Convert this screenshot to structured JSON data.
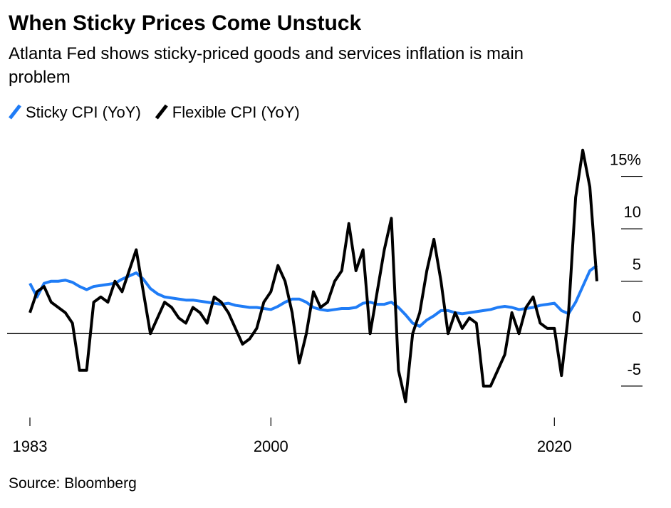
{
  "chart_data": {
    "type": "line",
    "title": "When Sticky Prices Come Unstuck",
    "subtitle": [
      "Atlanta Fed shows sticky-priced goods and services inflation is main",
      "problem"
    ],
    "source": "Source: Bloomberg",
    "x": [
      1983,
      1983.5,
      1984,
      1984.5,
      1985,
      1985.5,
      1986,
      1986.5,
      1987,
      1987.5,
      1988,
      1988.5,
      1989,
      1989.5,
      1990,
      1990.5,
      1991,
      1991.5,
      1992,
      1992.5,
      1993,
      1993.5,
      1994,
      1994.5,
      1995,
      1995.5,
      1996,
      1996.5,
      1997,
      1997.5,
      1998,
      1998.5,
      1999,
      1999.5,
      2000,
      2000.5,
      2001,
      2001.5,
      2002,
      2002.5,
      2003,
      2003.5,
      2004,
      2004.5,
      2005,
      2005.5,
      2006,
      2006.5,
      2007,
      2007.5,
      2008,
      2008.5,
      2009,
      2009.5,
      2010,
      2010.5,
      2011,
      2011.5,
      2012,
      2012.5,
      2013,
      2013.5,
      2014,
      2014.5,
      2015,
      2015.5,
      2016,
      2016.5,
      2017,
      2017.5,
      2018,
      2018.5,
      2019,
      2019.5,
      2020,
      2020.5,
      2021,
      2021.5,
      2022,
      2022.5,
      2023
    ],
    "series": [
      {
        "name": "Sticky CPI (YoY)",
        "color": "#1f7cf6",
        "values": [
          4.8,
          3.5,
          4.8,
          5,
          5,
          5.1,
          4.9,
          4.5,
          4.2,
          4.5,
          4.6,
          4.7,
          4.8,
          5.2,
          5.5,
          5.8,
          5.2,
          4.3,
          3.8,
          3.5,
          3.4,
          3.3,
          3.2,
          3.2,
          3.1,
          3.0,
          2.9,
          2.8,
          2.9,
          2.7,
          2.6,
          2.5,
          2.5,
          2.4,
          2.3,
          2.6,
          3.0,
          3.3,
          3.3,
          3.0,
          2.5,
          2.3,
          2.2,
          2.3,
          2.4,
          2.4,
          2.5,
          2.9,
          3.0,
          2.8,
          2.8,
          3.0,
          2.5,
          1.8,
          1.0,
          0.7,
          1.3,
          1.7,
          2.2,
          2.2,
          2.0,
          1.9,
          2.0,
          2.1,
          2.2,
          2.3,
          2.5,
          2.6,
          2.5,
          2.3,
          2.4,
          2.5,
          2.7,
          2.8,
          2.9,
          2.2,
          1.9,
          3.0,
          4.5,
          6.0,
          6.5
        ]
      },
      {
        "name": "Flexible CPI (YoY)",
        "color": "#000000",
        "values": [
          2,
          4,
          4.5,
          3,
          2.5,
          2,
          1,
          -3.5,
          -3.5,
          3,
          3.5,
          3,
          5,
          4,
          6,
          8,
          4,
          0,
          1.5,
          3,
          2.5,
          1.5,
          1,
          2.5,
          2,
          1,
          3.5,
          3,
          2,
          0.5,
          -1,
          -0.5,
          0.5,
          3,
          4,
          6.5,
          5,
          2,
          -2.8,
          0,
          4,
          2.5,
          3,
          5,
          6,
          10.5,
          6,
          8,
          0,
          4,
          8,
          11,
          -3.5,
          -6.5,
          0,
          2,
          6,
          9,
          5,
          0,
          2,
          0.5,
          1.5,
          1,
          -5,
          -5,
          -3.5,
          -2,
          2,
          0,
          2.5,
          3.5,
          1,
          0.5,
          0.5,
          -4,
          2,
          13,
          17.5,
          14,
          5
        ]
      }
    ],
    "xlim": [
      1983,
      2023
    ],
    "xticks": [
      1983,
      2000,
      2020
    ],
    "ylim": [
      -8,
      20
    ],
    "yticks": [
      {
        "value": 15,
        "label": "15%"
      },
      10,
      5,
      0,
      -5
    ]
  }
}
